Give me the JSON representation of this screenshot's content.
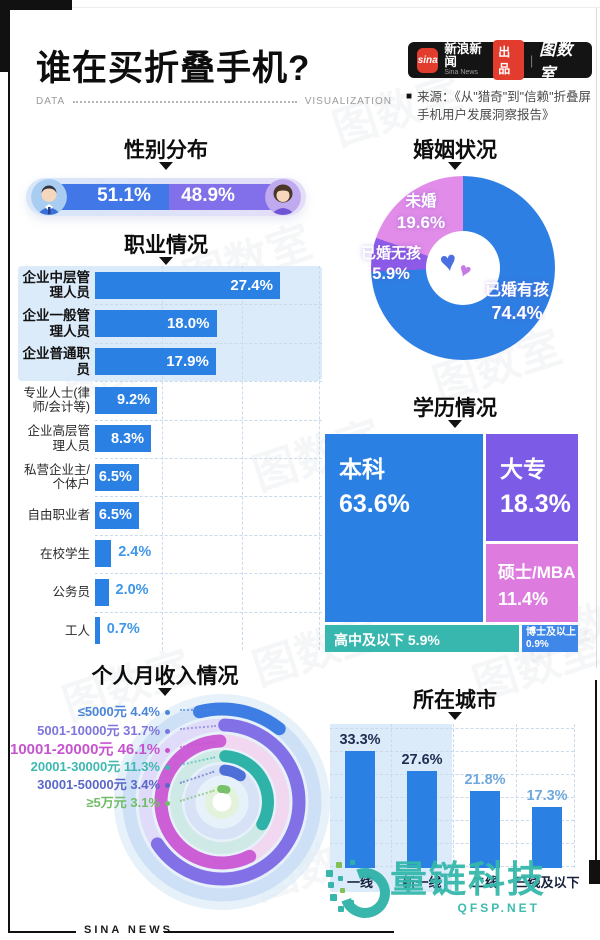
{
  "header": {
    "title": "谁在买折叠手机?",
    "divider_left": "DATA",
    "divider_right": "VISUALIZATION",
    "publisher": {
      "sina_script": "sina",
      "name": "新浪新闻",
      "name_en": "Sina News",
      "badge": "出品",
      "separator": "|",
      "studio": "图数室"
    },
    "source": "来源：《从\"猎奇\"到\"信赖\"折叠屏手机用户发展洞察报告》"
  },
  "chart_data": [
    {
      "type": "bar",
      "variant": "pill-split",
      "title": "性别分布",
      "categories": [
        "male-avatar",
        "female-avatar"
      ],
      "values": [
        51.1,
        48.9
      ],
      "colors": [
        "#4277E8",
        "#8170E9"
      ]
    },
    {
      "type": "pie",
      "variant": "donut",
      "title": "婚姻状况",
      "labels": [
        "已婚有孩",
        "已婚无孩",
        "未婚"
      ],
      "values": [
        74.4,
        5.9,
        19.6
      ],
      "colors": [
        "#2E7FE3",
        "#8D5BE8",
        "#E18CE8"
      ],
      "center_icons": [
        "blue-heart",
        "pink-heart"
      ]
    },
    {
      "type": "bar",
      "variant": "horizontal",
      "title": "职业情况",
      "categories": [
        "企业中层管理人员",
        "企业一般管理人员",
        "企业普通职员",
        "专业人士(律师/会计等)",
        "企业高层管理人员",
        "私营企业主/个体户",
        "自由职业者",
        "在校学生",
        "公务员",
        "工人"
      ],
      "values": [
        27.4,
        18.0,
        17.9,
        9.2,
        8.3,
        6.5,
        6.5,
        2.4,
        2.0,
        0.7
      ],
      "bar_color": "#2B80E4",
      "highlighted_rows": 3
    },
    {
      "type": "treemap",
      "title": "学历情况",
      "labels": [
        "本科",
        "大专",
        "硕士/MBA",
        "高中及以下",
        "博士及以上"
      ],
      "values": [
        63.6,
        18.3,
        11.4,
        5.9,
        0.9
      ],
      "colors": [
        "#2B80E4",
        "#7C5BE6",
        "#DD7BDF",
        "#38B7AE",
        "#3F87E8"
      ]
    },
    {
      "type": "radial",
      "variant": "activity-rings",
      "title": "个人月收入情况",
      "labels": [
        "≤5000元",
        "5001-10000元",
        "10001-20000元",
        "20001-30000元",
        "30001-50000元",
        "≥5万元"
      ],
      "values": [
        4.4,
        31.7,
        46.1,
        11.3,
        3.4,
        3.1
      ],
      "colors": [
        "#3E7EE4",
        "#8271E6",
        "#CC5ED6",
        "#2FB3A8",
        "#4E6FD8",
        "#77C168"
      ],
      "label_colors": [
        "#4A86D8",
        "#7D75DC",
        "#C554CE",
        "#3FB8B2",
        "#5A68C8",
        "#72BD67"
      ],
      "emphasized_index": 2
    },
    {
      "type": "bar",
      "variant": "vertical",
      "title": "所在城市",
      "categories": [
        "一线",
        "新一线",
        "二线",
        "三线及以下"
      ],
      "values": [
        33.3,
        27.6,
        21.8,
        17.3
      ],
      "bar_color": "#2B80E4",
      "highlighted_cols": 2,
      "value_colors": [
        "#1F2D50",
        "#1F2D50",
        "#6FA8DC",
        "#6FA8DC"
      ]
    }
  ],
  "footer": {
    "brand": "SINA NEWS"
  },
  "watermark": {
    "stamp": "图数室",
    "brand": "量链科技",
    "site": "QFSP.NET"
  }
}
